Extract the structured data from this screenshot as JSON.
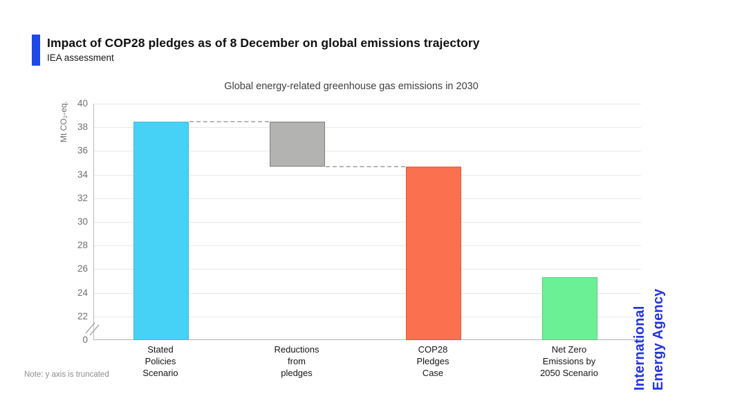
{
  "header": {
    "title": "Impact of COP28 pledges as of 8 December on global emissions trajectory",
    "subtitle": "IEA assessment",
    "accent_color": "#1c49e8"
  },
  "chart_data": {
    "type": "bar",
    "title": "Global energy-related greenhouse gas emissions in 2030",
    "ylabel": "Mt CO₂-eq.",
    "yticks": [
      40,
      38,
      36,
      34,
      32,
      30,
      28,
      26,
      24,
      22,
      0
    ],
    "ylim_display": [
      22,
      40
    ],
    "axis_truncated": true,
    "grid": true,
    "bars": [
      {
        "name": "stated-policies-scenario",
        "label": "Stated\nPolicies\nScenario",
        "base": 0,
        "value": 38.5,
        "color": "#45d2f6",
        "border": "#4fb4d5"
      },
      {
        "name": "reductions-from-pledges",
        "label": "Reductions\nfrom\npledges",
        "base": 34.7,
        "value": 38.5,
        "color": "#b3b3b2",
        "border": "#7d7d7d"
      },
      {
        "name": "cop28-pledges-case",
        "label": "COP28\nPledges\nCase",
        "base": 0,
        "value": 34.7,
        "color": "#fb7150",
        "border": "#e2593a"
      },
      {
        "name": "net-zero-emissions-by-2050-scenario",
        "label": "Net Zero\nEmissions by\n2050 Scenario",
        "base": 0,
        "value": 25.3,
        "color": "#6bf095",
        "border": "#55cf7c"
      }
    ],
    "connectors": [
      {
        "from": 0,
        "to": 1,
        "value": 38.5
      },
      {
        "from": 1,
        "to": 2,
        "value": 34.7
      }
    ],
    "note": "Note: y axis is truncated"
  },
  "logo": {
    "line1": "International",
    "line2": "Energy Agency",
    "color": "#2334de"
  }
}
